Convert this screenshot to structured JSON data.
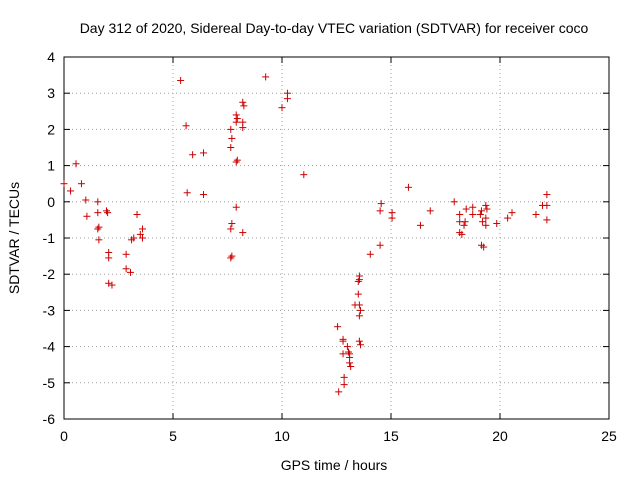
{
  "chart_data": {
    "type": "scatter",
    "title": "Day 312 of 2020, Sidereal Day-to-day VTEC variation (SDTVAR) for receiver coco",
    "xlabel": "GPS time / hours",
    "ylabel": "SDTVAR / TECUs",
    "xlim": [
      0,
      25
    ],
    "ylim": [
      -6,
      4
    ],
    "xticks": [
      "0",
      "5",
      "10",
      "15",
      "20",
      "25"
    ],
    "yticks": [
      "4",
      "3",
      "2",
      "1",
      "0",
      "-1",
      "-2",
      "-3",
      "-4",
      "-5",
      "-6"
    ],
    "grid": true,
    "marker": "plus",
    "color": "#cc0000",
    "series": [
      {
        "name": "SDTVAR",
        "points": [
          [
            0.0,
            0.5
          ],
          [
            0.3,
            0.3
          ],
          [
            0.55,
            1.05
          ],
          [
            0.8,
            0.5
          ],
          [
            1.05,
            -0.4
          ],
          [
            1.0,
            0.05
          ],
          [
            1.55,
            -0.3
          ],
          [
            1.55,
            -0.0
          ],
          [
            1.6,
            -0.7
          ],
          [
            1.6,
            -1.05
          ],
          [
            1.55,
            -0.75
          ],
          [
            1.95,
            -0.25
          ],
          [
            2.0,
            -0.3
          ],
          [
            2.05,
            -1.4
          ],
          [
            2.05,
            -1.55
          ],
          [
            2.05,
            -2.25
          ],
          [
            2.2,
            -2.3
          ],
          [
            2.85,
            -1.85
          ],
          [
            2.85,
            -1.45
          ],
          [
            3.05,
            -1.95
          ],
          [
            3.1,
            -1.05
          ],
          [
            3.2,
            -1.0
          ],
          [
            3.35,
            -0.35
          ],
          [
            3.5,
            -0.9
          ],
          [
            3.6,
            -0.75
          ],
          [
            3.6,
            -1.0
          ],
          [
            5.35,
            3.35
          ],
          [
            5.6,
            2.1
          ],
          [
            5.65,
            0.25
          ],
          [
            5.9,
            1.3
          ],
          [
            6.4,
            1.35
          ],
          [
            6.4,
            0.2
          ],
          [
            7.65,
            2.0
          ],
          [
            7.7,
            1.75
          ],
          [
            7.65,
            1.5
          ],
          [
            7.7,
            -0.6
          ],
          [
            7.65,
            -0.75
          ],
          [
            7.7,
            -1.5
          ],
          [
            7.65,
            -1.55
          ],
          [
            7.9,
            2.4
          ],
          [
            7.95,
            2.3
          ],
          [
            7.9,
            2.2
          ],
          [
            7.95,
            1.15
          ],
          [
            7.9,
            1.1
          ],
          [
            7.9,
            -0.15
          ],
          [
            8.2,
            2.75
          ],
          [
            8.25,
            2.65
          ],
          [
            8.2,
            2.2
          ],
          [
            8.2,
            2.05
          ],
          [
            8.2,
            -0.85
          ],
          [
            9.25,
            3.45
          ],
          [
            10.0,
            2.6
          ],
          [
            10.25,
            3.0
          ],
          [
            10.25,
            2.85
          ],
          [
            11.0,
            0.75
          ],
          [
            12.55,
            -3.45
          ],
          [
            12.6,
            -5.25
          ],
          [
            12.8,
            -3.8
          ],
          [
            12.8,
            -3.85
          ],
          [
            12.8,
            -4.2
          ],
          [
            12.85,
            -4.85
          ],
          [
            12.85,
            -5.05
          ],
          [
            13.0,
            -4.0
          ],
          [
            13.05,
            -4.15
          ],
          [
            13.1,
            -4.2
          ],
          [
            13.1,
            -4.3
          ],
          [
            13.1,
            -4.45
          ],
          [
            13.15,
            -4.55
          ],
          [
            13.35,
            -2.85
          ],
          [
            13.5,
            -2.55
          ],
          [
            13.5,
            -2.2
          ],
          [
            13.55,
            -2.05
          ],
          [
            13.55,
            -2.15
          ],
          [
            13.55,
            -2.85
          ],
          [
            13.6,
            -3.0
          ],
          [
            13.55,
            -3.15
          ],
          [
            13.55,
            -3.85
          ],
          [
            13.6,
            -3.95
          ],
          [
            14.05,
            -1.45
          ],
          [
            14.5,
            -1.2
          ],
          [
            14.55,
            -0.05
          ],
          [
            14.5,
            -0.25
          ],
          [
            15.05,
            -0.3
          ],
          [
            15.05,
            -0.45
          ],
          [
            15.8,
            0.4
          ],
          [
            16.35,
            -0.65
          ],
          [
            16.8,
            -0.25
          ],
          [
            17.9,
            0.0
          ],
          [
            18.15,
            -0.35
          ],
          [
            18.15,
            -0.55
          ],
          [
            18.15,
            -0.85
          ],
          [
            18.25,
            -0.9
          ],
          [
            18.35,
            -0.65
          ],
          [
            18.4,
            -0.55
          ],
          [
            18.45,
            -0.2
          ],
          [
            18.75,
            -0.15
          ],
          [
            18.75,
            -0.35
          ],
          [
            19.1,
            -0.35
          ],
          [
            19.15,
            -0.25
          ],
          [
            19.2,
            -0.55
          ],
          [
            19.15,
            -1.2
          ],
          [
            19.25,
            -1.25
          ],
          [
            19.35,
            -0.65
          ],
          [
            19.35,
            -0.45
          ],
          [
            19.35,
            -0.1
          ],
          [
            19.4,
            -0.2
          ],
          [
            19.85,
            -0.6
          ],
          [
            20.35,
            -0.45
          ],
          [
            20.55,
            -0.3
          ],
          [
            21.65,
            -0.35
          ],
          [
            21.95,
            -0.1
          ],
          [
            22.15,
            0.2
          ],
          [
            22.15,
            -0.1
          ],
          [
            22.15,
            -0.5
          ]
        ]
      }
    ]
  }
}
